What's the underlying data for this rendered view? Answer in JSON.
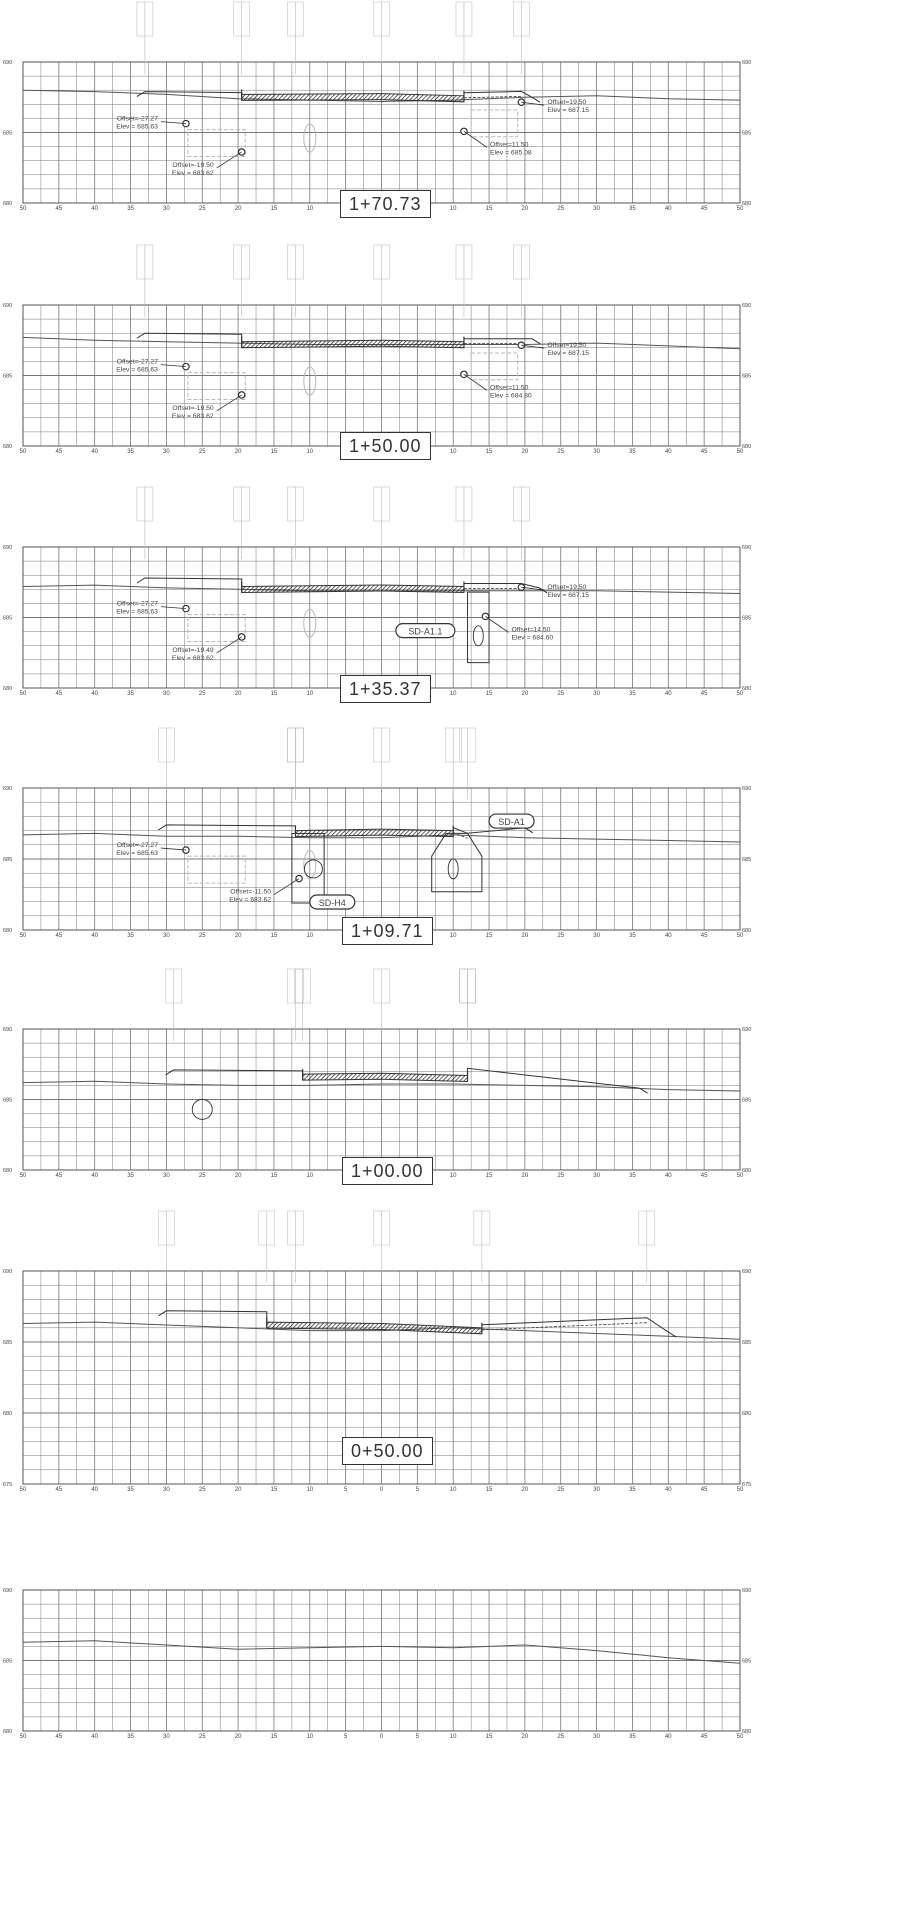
{
  "sheet_title": "",
  "x_ticks": [
    "50",
    "45",
    "40",
    "35",
    "30",
    "25",
    "20",
    "15",
    "10",
    "5",
    "0",
    "5",
    "10",
    "15",
    "20",
    "25",
    "30",
    "35",
    "40",
    "45",
    "50"
  ],
  "palette": {
    "grid": "#777777",
    "major_grid": "#555555",
    "ground": "#555555",
    "road": "#333333",
    "hatch": "#222222",
    "text": "#444444",
    "faint": "#b8b8b8"
  },
  "sections": [
    {
      "station": "1+70.73",
      "y_ticks": [
        "690",
        "685",
        "680"
      ],
      "pipe_labels": [],
      "callouts": [
        {
          "id": "l1",
          "offset": "Offset=-27.27",
          "elev": "Elev = 685.63"
        },
        {
          "id": "l2",
          "offset": "Offset=-19.50",
          "elev": "Elev = 683.62"
        },
        {
          "id": "r1",
          "offset": "Offset=19.50",
          "elev": "Elev = 687.15"
        },
        {
          "id": "r2",
          "offset": "Offset=11.50",
          "elev": "Elev = 685.08"
        }
      ]
    },
    {
      "station": "1+50.00",
      "y_ticks": [
        "690",
        "685",
        "680"
      ],
      "pipe_labels": [],
      "callouts": [
        {
          "id": "l1",
          "offset": "Offset=-27.27",
          "elev": "Elev = 685.63"
        },
        {
          "id": "l2",
          "offset": "Offset=-19.50",
          "elev": "Elev = 683.62"
        },
        {
          "id": "r1",
          "offset": "Offset=19.50",
          "elev": "Elev = 687.15"
        },
        {
          "id": "r2",
          "offset": "Offset=11.50",
          "elev": "Elev = 684.80"
        }
      ]
    },
    {
      "station": "1+35.37",
      "y_ticks": [
        "690",
        "685",
        "680"
      ],
      "pipe_labels": [
        "SD-A1.1"
      ],
      "callouts": [
        {
          "id": "l1",
          "offset": "Offset=-27.27",
          "elev": "Elev = 685.63"
        },
        {
          "id": "l2",
          "offset": "Offset=-19.49",
          "elev": "Elev = 683.62"
        },
        {
          "id": "r1",
          "offset": "Offset=19.50",
          "elev": "Elev = 687.15"
        },
        {
          "id": "r2",
          "offset": "Offset=14.50",
          "elev": "Elev = 684.60"
        }
      ]
    },
    {
      "station": "1+09.71",
      "y_ticks": [
        "690",
        "685",
        "680"
      ],
      "pipe_labels": [
        "SD-A1",
        "SD-H4"
      ],
      "callouts": [
        {
          "id": "l1",
          "offset": "Offset=-27.27",
          "elev": "Elev = 685.63"
        },
        {
          "id": "l2",
          "offset": "Offset=-11.50",
          "elev": "Elev = 683.62"
        }
      ]
    },
    {
      "station": "1+00.00",
      "y_ticks": [
        "690",
        "685",
        "680"
      ],
      "pipe_labels": [],
      "callouts": []
    },
    {
      "station": "0+50.00",
      "y_ticks": [
        "690",
        "685",
        "680",
        "675"
      ],
      "pipe_labels": [],
      "callouts": []
    },
    {
      "station": "",
      "y_ticks": [
        "690",
        "685",
        "680"
      ],
      "pipe_labels": [],
      "callouts": []
    }
  ]
}
